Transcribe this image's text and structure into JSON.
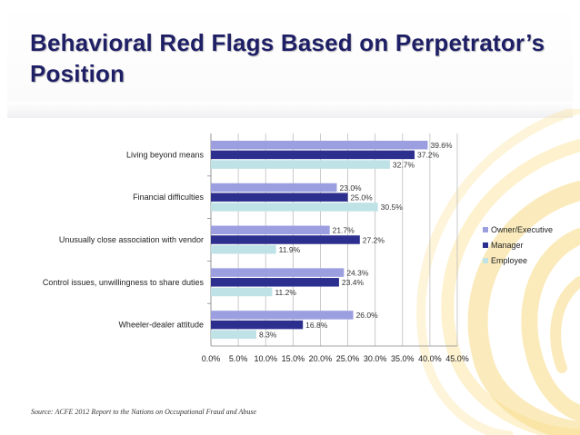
{
  "title": "Behavioral Red Flags Based on Perpetrator’s Position",
  "source": "Source: ACFE 2012 Report to the Nations on Occupational Fraud and Abuse",
  "colors": {
    "owner": "#9c9fdf",
    "manager": "#2d2f8e",
    "employee": "#bfe2e6",
    "title": "#1f1f66",
    "swirl": "#f5c842"
  },
  "chart_data": {
    "type": "bar",
    "orientation": "horizontal",
    "categories": [
      "Living beyond means",
      "Financial difficulties",
      "Unusually close association with vendor",
      "Control issues, unwillingness to share duties",
      "Wheeler-dealer attitude"
    ],
    "series": [
      {
        "name": "Owner/Executive",
        "values": [
          39.6,
          23.0,
          21.7,
          24.3,
          26.0
        ],
        "labels": [
          "39.6%",
          "23.0%",
          "21.7%",
          "24.3%",
          "26.0%"
        ]
      },
      {
        "name": "Manager",
        "values": [
          37.2,
          25.0,
          27.2,
          23.4,
          16.8
        ],
        "labels": [
          "37.2%",
          "25.0%",
          "27.2%",
          "23.4%",
          "16.8%"
        ]
      },
      {
        "name": "Employee",
        "values": [
          32.7,
          30.5,
          11.9,
          11.2,
          8.3
        ],
        "labels": [
          "32.7%",
          "30.5%",
          "11.9%",
          "11.2%",
          "8.3%"
        ]
      }
    ],
    "xlim": [
      0,
      45
    ],
    "xticks": [
      "0.0%",
      "5.0%",
      "10.0%",
      "15.0%",
      "20.0%",
      "25.0%",
      "30.0%",
      "35.0%",
      "40.0%",
      "45.0%"
    ],
    "legend": "right",
    "grid": true
  }
}
